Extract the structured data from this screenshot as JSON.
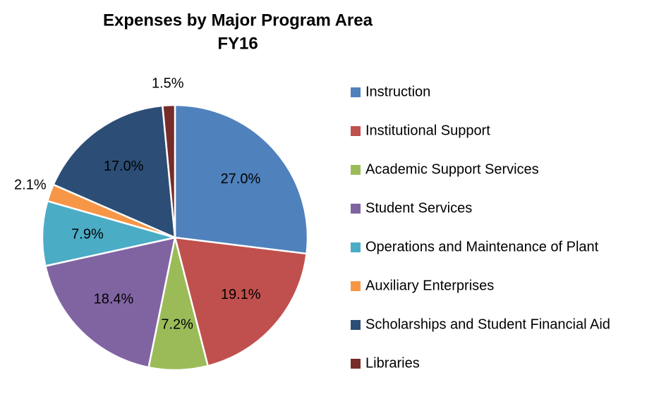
{
  "chart_data": {
    "type": "pie",
    "title": "Expenses by Major Program Area",
    "subtitle": "FY16",
    "categories": [
      "Instruction",
      "Institutional Support",
      "Academic Support Services",
      "Student Services",
      "Operations and Maintenance of Plant",
      "Auxiliary Enterprises",
      "Scholarships and Student Financial Aid",
      "Libraries"
    ],
    "values": [
      27.0,
      19.1,
      7.2,
      18.4,
      7.9,
      2.1,
      17.0,
      1.5
    ],
    "value_labels": [
      "27.0%",
      "19.1%",
      "7.2%",
      "18.4%",
      "7.9%",
      "2.1%",
      "17.0%",
      "1.5%"
    ],
    "colors": [
      "#4f81bd",
      "#c0504d",
      "#9bbb59",
      "#8064a2",
      "#4bacc6",
      "#f79646",
      "#2c4d75",
      "#772c2a"
    ],
    "legend": "right"
  }
}
